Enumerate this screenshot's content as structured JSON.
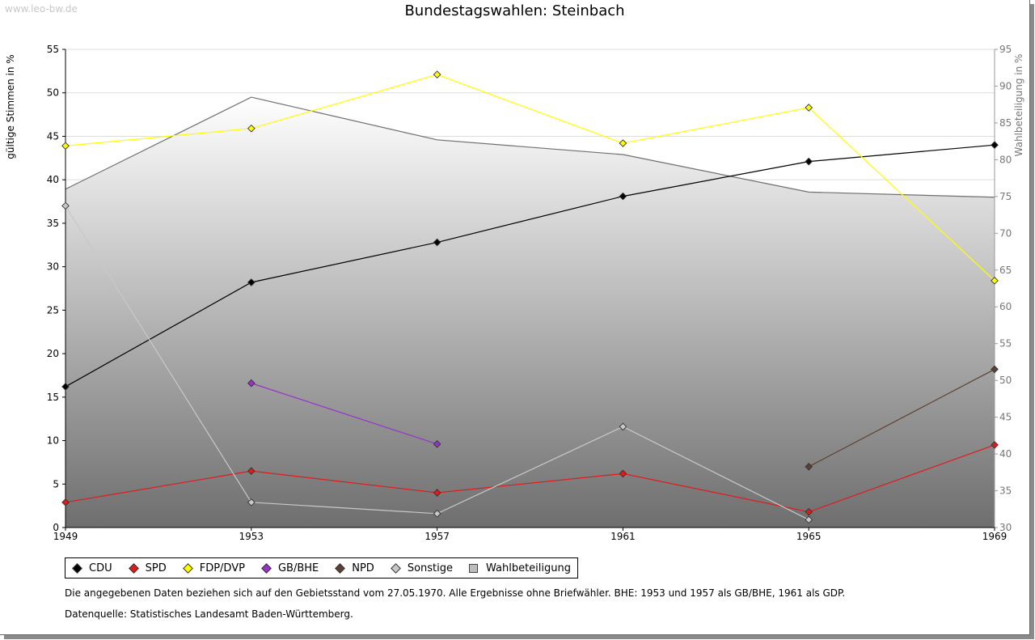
{
  "watermark": "www.leo-bw.de",
  "title": "Bundestagswahlen: Steinbach",
  "footnote": "Die angegebenen Daten beziehen sich auf den Gebietsstand vom 27.05.1970. Alle Ergebnisse ohne Briefwähler. BHE: 1953 und 1957 als GB/BHE, 1961 als GDP.",
  "source": "Datenquelle: Statistisches Landesamt Baden-Württemberg.",
  "chart_data": {
    "type": "line",
    "x": [
      "1949",
      "1953",
      "1957",
      "1961",
      "1965",
      "1969"
    ],
    "ylabel": "gültige Stimmen in %",
    "ylabel_right": "Wahlbeteiligung in %",
    "ylim": [
      0,
      55
    ],
    "ylim_right": [
      30,
      95
    ],
    "yticks": [
      0,
      5,
      10,
      15,
      20,
      25,
      30,
      35,
      40,
      45,
      50,
      55
    ],
    "yticks_right": [
      30,
      35,
      40,
      45,
      50,
      55,
      60,
      65,
      70,
      75,
      80,
      85,
      90,
      95
    ],
    "grid": true,
    "legend_position": "bottom",
    "series": [
      {
        "name": "CDU",
        "color": "#000000",
        "values": [
          16.2,
          28.2,
          32.8,
          38.1,
          42.1,
          44.0
        ]
      },
      {
        "name": "SPD",
        "color": "#e31a1c",
        "values": [
          2.9,
          6.5,
          4.0,
          6.2,
          1.8,
          9.5
        ]
      },
      {
        "name": "FDP/DVP",
        "color": "#ffff00",
        "values": [
          43.9,
          45.9,
          52.1,
          44.2,
          48.3,
          28.4
        ]
      },
      {
        "name": "GB/BHE",
        "color": "#9932cc",
        "values": [
          null,
          16.6,
          9.6,
          null,
          null,
          null
        ]
      },
      {
        "name": "NPD",
        "color": "#5c4033",
        "values": [
          null,
          null,
          null,
          null,
          7.0,
          18.2
        ]
      },
      {
        "name": "Sonstige",
        "color": "#c8c8c8",
        "values": [
          37.0,
          2.9,
          1.6,
          11.6,
          0.9,
          null
        ]
      }
    ],
    "area_series": {
      "name": "Wahlbeteiligung",
      "axis": "right",
      "values": [
        76.0,
        88.5,
        82.7,
        80.7,
        75.6,
        74.9
      ]
    }
  }
}
